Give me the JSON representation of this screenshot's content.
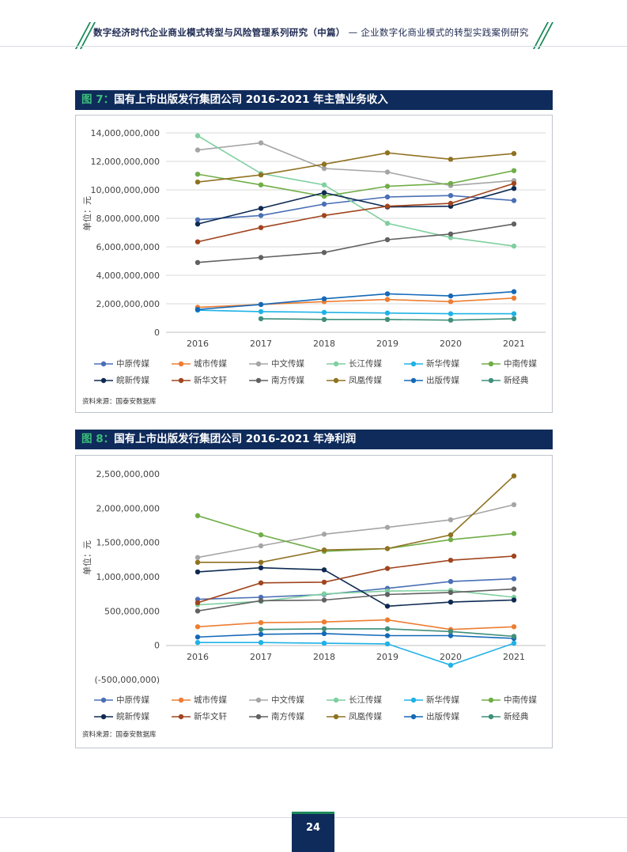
{
  "header": {
    "title_bold": "数字经济时代企业商业模式转型与风险管理系列研究（中篇）",
    "title_rest": "— 企业数字化商业模式的转型实践案例研究"
  },
  "page_number": "24",
  "chart_data": [
    {
      "figure_no": "图 7：",
      "title": "国有上市出版发行集团公司 2016-2021 年主营业务收入",
      "type": "line",
      "ylabel": "单位：元",
      "source": "资料来源：国泰安数据库",
      "x": [
        "2016",
        "2017",
        "2018",
        "2019",
        "2020",
        "2021"
      ],
      "ylim": [
        0,
        14000000000
      ],
      "yticks": [
        0,
        2000000000,
        4000000000,
        6000000000,
        8000000000,
        10000000000,
        12000000000,
        14000000000
      ],
      "ytick_labels": [
        "0",
        "2,000,000,000",
        "4,000,000,000",
        "6,000,000,000",
        "8,000,000,000",
        "10,000,000,000",
        "12,000,000,000",
        "14,000,000,000"
      ],
      "grid": true,
      "legend_position": "bottom",
      "series": [
        {
          "name": "中原传媒",
          "color": "#4a6fb5",
          "values": [
            7900000000,
            8200000000,
            9000000000,
            9500000000,
            9600000000,
            9250000000
          ]
        },
        {
          "name": "城市传媒",
          "color": "#ed7d31",
          "values": [
            1750000000,
            1950000000,
            2150000000,
            2300000000,
            2150000000,
            2400000000
          ]
        },
        {
          "name": "中文传媒",
          "color": "#a5a5a5",
          "values": [
            12800000000,
            13300000000,
            11500000000,
            11250000000,
            10300000000,
            10650000000
          ]
        },
        {
          "name": "长江传媒",
          "color": "#7fcf9f",
          "values": [
            13800000000,
            11150000000,
            10350000000,
            7650000000,
            6650000000,
            6050000000
          ]
        },
        {
          "name": "新华传媒",
          "color": "#1fb2e6",
          "values": [
            1550000000,
            1450000000,
            1400000000,
            1350000000,
            1300000000,
            1300000000
          ]
        },
        {
          "name": "中南传媒",
          "color": "#70ad47",
          "values": [
            11100000000,
            10350000000,
            9550000000,
            10250000000,
            10450000000,
            11350000000
          ]
        },
        {
          "name": "皖新传媒",
          "color": "#0e2a52",
          "values": [
            7600000000,
            8700000000,
            9800000000,
            8800000000,
            8850000000,
            10100000000
          ]
        },
        {
          "name": "新华文轩",
          "color": "#a0451e",
          "values": [
            6350000000,
            7350000000,
            8200000000,
            8850000000,
            9050000000,
            10450000000
          ]
        },
        {
          "name": "南方传媒",
          "color": "#616161",
          "values": [
            4900000000,
            5250000000,
            5600000000,
            6500000000,
            6900000000,
            7600000000
          ]
        },
        {
          "name": "凤凰传媒",
          "color": "#8f7221",
          "values": [
            10550000000,
            11050000000,
            11800000000,
            12600000000,
            12150000000,
            12550000000
          ]
        },
        {
          "name": "出版传媒",
          "color": "#1469b8",
          "values": [
            1600000000,
            1950000000,
            2350000000,
            2700000000,
            2550000000,
            2850000000
          ]
        },
        {
          "name": "新经典",
          "color": "#3f8f7a",
          "values": [
            null,
            950000000,
            900000000,
            900000000,
            850000000,
            950000000
          ]
        }
      ]
    },
    {
      "figure_no": "图 8：",
      "title": "国有上市出版发行集团公司 2016-2021 年净利润",
      "type": "line",
      "ylabel": "单位：元",
      "source": "资料来源：国泰安数据库",
      "x": [
        "2016",
        "2017",
        "2018",
        "2019",
        "2020",
        "2021"
      ],
      "ylim": [
        -500000000,
        2500000000
      ],
      "yticks": [
        -500000000,
        0,
        500000000,
        1000000000,
        1500000000,
        2000000000,
        2500000000
      ],
      "ytick_labels": [
        "(-500,000,000)",
        "0",
        "500,000,000",
        "1,000,000,000",
        "1,500,000,000",
        "2,000,000,000",
        "2,500,000,000"
      ],
      "grid": false,
      "legend_position": "bottom",
      "series": [
        {
          "name": "中原传媒",
          "color": "#4a6fb5",
          "values": [
            670000000,
            700000000,
            740000000,
            830000000,
            930000000,
            970000000
          ]
        },
        {
          "name": "城市传媒",
          "color": "#ed7d31",
          "values": [
            270000000,
            330000000,
            340000000,
            370000000,
            230000000,
            270000000
          ]
        },
        {
          "name": "中文传媒",
          "color": "#a5a5a5",
          "values": [
            1280000000,
            1450000000,
            1620000000,
            1720000000,
            1830000000,
            2050000000
          ]
        },
        {
          "name": "长江传媒",
          "color": "#7fcf9f",
          "values": [
            590000000,
            640000000,
            750000000,
            790000000,
            800000000,
            700000000
          ]
        },
        {
          "name": "新华传媒",
          "color": "#1fb2e6",
          "values": [
            40000000,
            40000000,
            30000000,
            20000000,
            -290000000,
            30000000
          ]
        },
        {
          "name": "中南传媒",
          "color": "#70ad47",
          "values": [
            1890000000,
            1610000000,
            1370000000,
            1410000000,
            1540000000,
            1630000000
          ]
        },
        {
          "name": "皖新传媒",
          "color": "#0e2a52",
          "values": [
            1070000000,
            1130000000,
            1100000000,
            570000000,
            630000000,
            660000000
          ]
        },
        {
          "name": "新华文轩",
          "color": "#a0451e",
          "values": [
            620000000,
            910000000,
            920000000,
            1120000000,
            1240000000,
            1300000000
          ]
        },
        {
          "name": "南方传媒",
          "color": "#616161",
          "values": [
            500000000,
            650000000,
            660000000,
            740000000,
            770000000,
            820000000
          ]
        },
        {
          "name": "凤凰传媒",
          "color": "#8f7221",
          "values": [
            1210000000,
            1210000000,
            1390000000,
            1410000000,
            1610000000,
            2470000000
          ]
        },
        {
          "name": "出版传媒",
          "color": "#1469b8",
          "values": [
            120000000,
            160000000,
            170000000,
            140000000,
            140000000,
            100000000
          ]
        },
        {
          "name": "新经典",
          "color": "#3f8f7a",
          "values": [
            null,
            230000000,
            240000000,
            240000000,
            200000000,
            130000000
          ]
        }
      ]
    }
  ]
}
